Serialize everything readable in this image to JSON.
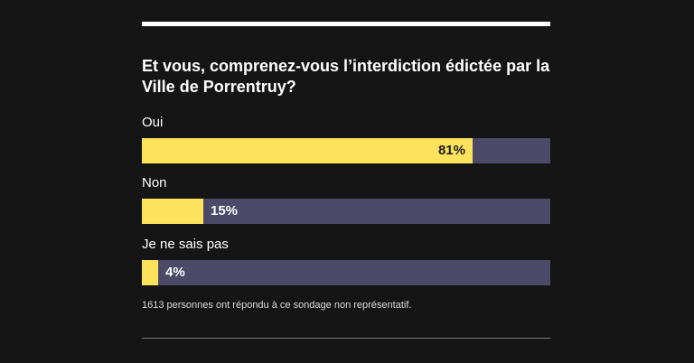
{
  "poll": {
    "question": "Et vous, comprenez-vous l’interdiction édictée par la Ville de Porrentruy?",
    "options": [
      {
        "label": "Oui",
        "percent_text": "81%",
        "percent": 81
      },
      {
        "label": "Non",
        "percent_text": "15%",
        "percent": 15
      },
      {
        "label": "Je ne sais pas",
        "percent_text": "4%",
        "percent": 4
      }
    ],
    "footnote": "1613 personnes ont répondu à ce sondage non représentatif."
  },
  "colors": {
    "background": "#151515",
    "bar_fill": "#fde25e",
    "bar_track": "#4b4a68",
    "text": "#ffffff",
    "percent_inside": "#1b1b1b",
    "percent_outside": "#ffffff"
  }
}
